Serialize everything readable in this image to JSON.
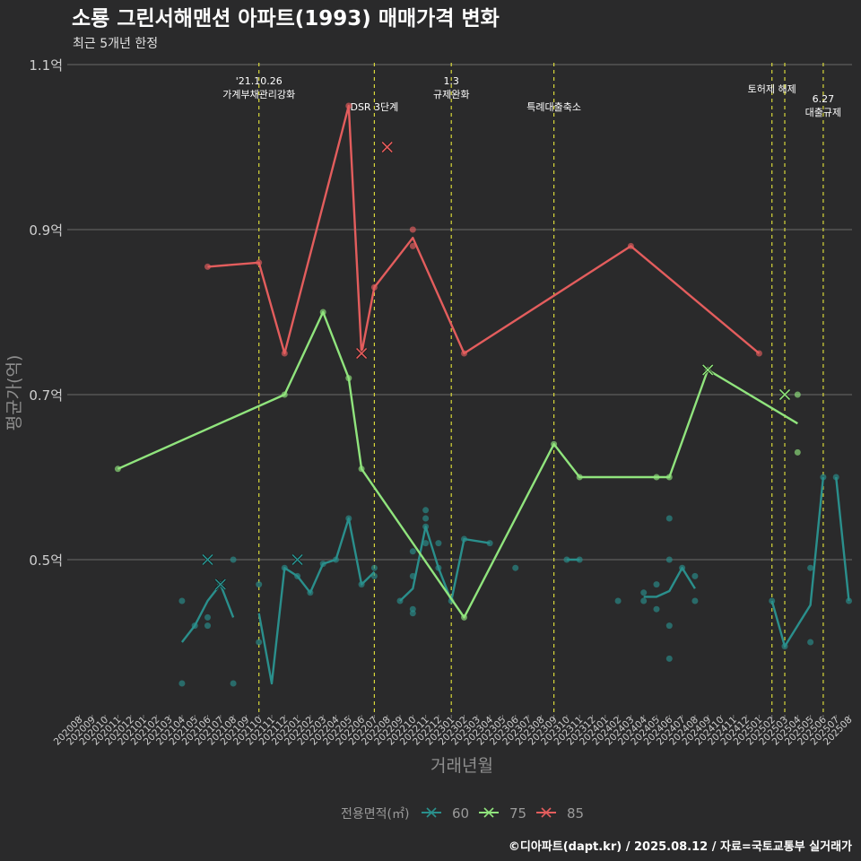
{
  "chart_data": {
    "type": "line",
    "title": "소룡 그린서해맨션 아파트(1993) 매매가격 변화",
    "subtitle": "최근 5개년 한정",
    "xlabel": "거래년월",
    "ylabel": "평균가(억)",
    "legend_title": "전용면적(㎡)",
    "legend_position": "bottom",
    "footer": "©디아파트(dapt.kr) / 2025.08.12 / 자료=국토교통부 실거래가",
    "ylim": [
      0.32,
      1.1
    ],
    "y_ticks": [
      {
        "value": 0.5,
        "label": "0.5억"
      },
      {
        "value": 0.7,
        "label": "0.7억"
      },
      {
        "value": 0.9,
        "label": "0.9억"
      },
      {
        "value": 1.1,
        "label": "1.1억"
      }
    ],
    "x_categories": [
      "202008",
      "202009",
      "202010",
      "202011",
      "202012",
      "202101",
      "202102",
      "202103",
      "202104",
      "202105",
      "202106",
      "202107",
      "202108",
      "202109",
      "202110",
      "202111",
      "202112",
      "202201",
      "202202",
      "202203",
      "202204",
      "202205",
      "202206",
      "202207",
      "202208",
      "202209",
      "202210",
      "202211",
      "202212",
      "202301",
      "202302",
      "202303",
      "202304",
      "202305",
      "202306",
      "202307",
      "202308",
      "202309",
      "202310",
      "202311",
      "202312",
      "202401",
      "202402",
      "202403",
      "202404",
      "202405",
      "202406",
      "202407",
      "202408",
      "202409",
      "202410",
      "202411",
      "202412",
      "202501",
      "202502",
      "202503",
      "202504",
      "202505",
      "202506",
      "202507",
      "202508"
    ],
    "events": [
      {
        "x": "202110",
        "lines": [
          "'21.10.26",
          "가계부채관리강화"
        ]
      },
      {
        "x": "202207",
        "lines": [
          "DSR 3단계"
        ]
      },
      {
        "x": "202301",
        "lines": [
          "1.3",
          "규제완화"
        ]
      },
      {
        "x": "202309",
        "lines": [
          "특례대출축소"
        ]
      },
      {
        "x": "202502",
        "lines": [
          "토허제 해제"
        ]
      },
      {
        "x": "202503",
        "lines": []
      },
      {
        "x": "202506",
        "lines": [
          "6.27",
          "대출규제"
        ]
      }
    ],
    "series": [
      {
        "name": "60",
        "color": "#2a8f8c",
        "line": [
          [
            "202104",
            0.4
          ],
          [
            "202105",
            0.42
          ],
          [
            "202106",
            0.45
          ],
          [
            "202107",
            0.47
          ],
          [
            "202108",
            0.43
          ],
          null,
          [
            "202110",
            0.435
          ],
          [
            "202111",
            0.35
          ],
          [
            "202112",
            0.49
          ],
          [
            "202201",
            0.48
          ],
          [
            "202202",
            0.46
          ],
          [
            "202203",
            0.495
          ],
          [
            "202204",
            0.5
          ],
          [
            "202205",
            0.55
          ],
          [
            "202206",
            0.47
          ],
          [
            "202207",
            0.485
          ],
          null,
          [
            "202209",
            0.45
          ],
          [
            "202210",
            0.465
          ],
          [
            "202211",
            0.54
          ],
          [
            "202212",
            0.49
          ],
          [
            "202301",
            0.45
          ],
          [
            "202302",
            0.525
          ],
          [
            "202304",
            0.52
          ],
          null,
          [
            "202310",
            0.5
          ],
          [
            "202311",
            0.5
          ],
          null,
          [
            "202404",
            0.455
          ],
          [
            "202405",
            0.455
          ],
          [
            "202406",
            0.462
          ],
          [
            "202407",
            0.49
          ],
          [
            "202408",
            0.465
          ],
          null,
          [
            "202502",
            0.45
          ],
          [
            "202503",
            0.395
          ],
          [
            "202504",
            0.42
          ],
          [
            "202505",
            0.445
          ],
          [
            "202506",
            0.6
          ],
          null,
          [
            "202507",
            0.6
          ],
          [
            "202508",
            0.45
          ]
        ],
        "points": [
          [
            "202104",
            0.45
          ],
          [
            "202104",
            0.35
          ],
          [
            "202105",
            0.42
          ],
          [
            "202106",
            0.43
          ],
          [
            "202106",
            0.42
          ],
          [
            "202107",
            0.47
          ],
          [
            "202108",
            0.5
          ],
          [
            "202108",
            0.35
          ],
          [
            "202110",
            0.47
          ],
          [
            "202110",
            0.4
          ],
          [
            "202112",
            0.49
          ],
          [
            "202201",
            0.48
          ],
          [
            "202202",
            0.46
          ],
          [
            "202203",
            0.495
          ],
          [
            "202204",
            0.5
          ],
          [
            "202205",
            0.55
          ],
          [
            "202206",
            0.47
          ],
          [
            "202207",
            0.49
          ],
          [
            "202207",
            0.48
          ],
          [
            "202209",
            0.45
          ],
          [
            "202210",
            0.51
          ],
          [
            "202210",
            0.48
          ],
          [
            "202210",
            0.44
          ],
          [
            "202210",
            0.435
          ],
          [
            "202211",
            0.56
          ],
          [
            "202211",
            0.55
          ],
          [
            "202211",
            0.54
          ],
          [
            "202211",
            0.52
          ],
          [
            "202212",
            0.52
          ],
          [
            "202212",
            0.49
          ],
          [
            "202301",
            0.45
          ],
          [
            "202302",
            0.525
          ],
          [
            "202304",
            0.52
          ],
          [
            "202306",
            0.49
          ],
          [
            "202310",
            0.5
          ],
          [
            "202311",
            0.5
          ],
          [
            "202402",
            0.45
          ],
          [
            "202404",
            0.46
          ],
          [
            "202404",
            0.45
          ],
          [
            "202405",
            0.47
          ],
          [
            "202405",
            0.44
          ],
          [
            "202406",
            0.55
          ],
          [
            "202406",
            0.5
          ],
          [
            "202406",
            0.42
          ],
          [
            "202406",
            0.38
          ],
          [
            "202407",
            0.49
          ],
          [
            "202408",
            0.48
          ],
          [
            "202408",
            0.45
          ],
          [
            "202502",
            0.45
          ],
          [
            "202503",
            0.395
          ],
          [
            "202505",
            0.49
          ],
          [
            "202505",
            0.4
          ],
          [
            "202506",
            0.6
          ],
          [
            "202507",
            0.6
          ],
          [
            "202508",
            0.45
          ]
        ],
        "crosses": [
          [
            "202106",
            0.5
          ],
          [
            "202107",
            0.47
          ],
          [
            "202201",
            0.5
          ]
        ]
      },
      {
        "name": "75",
        "color": "#90e47d",
        "line": [
          [
            "202011",
            0.61
          ],
          [
            "202112",
            0.7
          ],
          [
            "202203",
            0.8
          ],
          [
            "202205",
            0.72
          ],
          [
            "202206",
            0.61
          ],
          [
            "202302",
            0.43
          ],
          [
            "202309",
            0.64
          ],
          [
            "202311",
            0.6
          ],
          [
            "202405",
            0.6
          ],
          [
            "202406",
            0.6
          ],
          [
            "202409",
            0.73
          ],
          [
            "202504",
            0.665
          ]
        ],
        "points": [
          [
            "202011",
            0.61
          ],
          [
            "202112",
            0.7
          ],
          [
            "202203",
            0.8
          ],
          [
            "202205",
            0.72
          ],
          [
            "202206",
            0.61
          ],
          [
            "202302",
            0.43
          ],
          [
            "202309",
            0.64
          ],
          [
            "202311",
            0.6
          ],
          [
            "202405",
            0.6
          ],
          [
            "202406",
            0.6
          ],
          [
            "202409",
            0.73
          ],
          [
            "202504",
            0.7
          ],
          [
            "202504",
            0.63
          ]
        ],
        "crosses": [
          [
            "202409",
            0.73
          ],
          [
            "202503",
            0.7
          ]
        ]
      },
      {
        "name": "85",
        "color": "#e35d5d",
        "line": [
          [
            "202106",
            0.855
          ],
          [
            "202110",
            0.86
          ],
          [
            "202112",
            0.75
          ],
          [
            "202205",
            1.05
          ],
          [
            "202206",
            0.75
          ],
          [
            "202207",
            0.83
          ],
          [
            "202210",
            0.89
          ],
          [
            "202302",
            0.75
          ],
          [
            "202403",
            0.88
          ],
          [
            "202501",
            0.75
          ]
        ],
        "points": [
          [
            "202106",
            0.855
          ],
          [
            "202110",
            0.86
          ],
          [
            "202112",
            0.75
          ],
          [
            "202205",
            1.05
          ],
          [
            "202207",
            0.83
          ],
          [
            "202210",
            0.9
          ],
          [
            "202210",
            0.88
          ],
          [
            "202302",
            0.75
          ],
          [
            "202403",
            0.88
          ],
          [
            "202501",
            0.75
          ]
        ],
        "crosses": [
          [
            "202206",
            0.75
          ],
          [
            "202208",
            1.0
          ]
        ]
      }
    ]
  }
}
